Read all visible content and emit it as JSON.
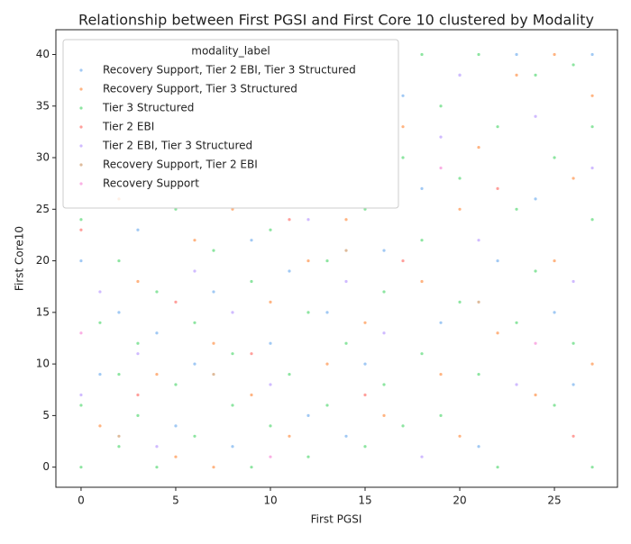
{
  "chart_data": {
    "type": "scatter",
    "title": "Relationship between First PGSI and First Core 10 clustered by Modality",
    "x_label": "First PGSI",
    "y_label": "First Core10",
    "legend_title": "modality_label",
    "legend": "upper left",
    "xlim": [
      -1.33,
      28.33
    ],
    "ylim": [
      -1.95,
      42.4
    ],
    "xticks": [
      0,
      5,
      10,
      15,
      20,
      25
    ],
    "yticks": [
      0,
      5,
      10,
      15,
      20,
      25,
      30,
      35,
      40
    ],
    "series": [
      {
        "name": "Recovery Support, Tier 2 EBI, Tier 3 Structured",
        "color": "#a1c9f4",
        "x": [
          0,
          1,
          2,
          3,
          4,
          5,
          6,
          7,
          8,
          9,
          10,
          11,
          12,
          13,
          14,
          15,
          16,
          17,
          18,
          19,
          20,
          21,
          22,
          23,
          24,
          25,
          26,
          27
        ],
        "values": [
          20,
          9,
          15,
          23,
          13,
          4,
          10,
          17,
          2,
          22,
          12,
          19,
          5,
          15,
          3,
          10,
          21,
          36,
          27,
          14,
          38,
          2,
          20,
          40,
          26,
          15,
          8,
          40
        ]
      },
      {
        "name": "Recovery Support, Tier 3 Structured",
        "color": "#ffb482",
        "x": [
          1,
          2,
          3,
          4,
          5,
          6,
          7,
          7,
          8,
          9,
          10,
          11,
          12,
          13,
          14,
          15,
          16,
          17,
          18,
          19,
          20,
          20,
          21,
          22,
          23,
          24,
          25,
          25,
          26,
          27,
          27
        ],
        "values": [
          4,
          26,
          18,
          9,
          1,
          22,
          0,
          12,
          25,
          7,
          16,
          3,
          20,
          10,
          24,
          14,
          5,
          33,
          18,
          9,
          25,
          3,
          31,
          13,
          38,
          7,
          40,
          20,
          28,
          10,
          36
        ]
      },
      {
        "name": "Tier 3 Structured",
        "color": "#8de5a1",
        "x": [
          0,
          0,
          0,
          1,
          2,
          2,
          2,
          3,
          3,
          4,
          4,
          5,
          5,
          6,
          6,
          7,
          8,
          8,
          9,
          9,
          10,
          10,
          11,
          12,
          12,
          13,
          13,
          14,
          15,
          15,
          16,
          16,
          17,
          17,
          18,
          18,
          18,
          19,
          19,
          20,
          20,
          21,
          21,
          22,
          22,
          23,
          23,
          24,
          24,
          25,
          25,
          26,
          26,
          27,
          27,
          27
        ],
        "values": [
          0,
          6,
          24,
          14,
          2,
          9,
          20,
          5,
          12,
          0,
          17,
          8,
          25,
          3,
          14,
          21,
          6,
          11,
          0,
          18,
          4,
          23,
          9,
          1,
          15,
          6,
          20,
          12,
          2,
          25,
          8,
          17,
          30,
          4,
          40,
          22,
          11,
          35,
          5,
          28,
          16,
          40,
          9,
          33,
          0,
          25,
          14,
          38,
          19,
          6,
          30,
          39,
          12,
          0,
          24,
          33
        ]
      },
      {
        "name": "Tier 2 EBI",
        "color": "#ff9f9b",
        "x": [
          0,
          3,
          5,
          9,
          11,
          15,
          17,
          22,
          26
        ],
        "values": [
          23,
          7,
          16,
          11,
          24,
          7,
          20,
          27,
          3
        ]
      },
      {
        "name": "Tier 2 EBI, Tier 3 Structured",
        "color": "#d0bbff",
        "x": [
          0,
          1,
          3,
          4,
          6,
          8,
          10,
          12,
          14,
          16,
          18,
          19,
          20,
          21,
          23,
          24,
          26,
          27
        ],
        "values": [
          7,
          17,
          11,
          2,
          19,
          15,
          8,
          24,
          18,
          13,
          1,
          32,
          38,
          22,
          8,
          34,
          18,
          29
        ]
      },
      {
        "name": "Recovery Support, Tier 2 EBI",
        "color": "#debb9b",
        "x": [
          2,
          7,
          14,
          21
        ],
        "values": [
          3,
          9,
          21,
          16
        ]
      },
      {
        "name": "Recovery Support",
        "color": "#fab0e4",
        "x": [
          0,
          10,
          19,
          24
        ],
        "values": [
          13,
          1,
          29,
          12
        ]
      }
    ]
  }
}
